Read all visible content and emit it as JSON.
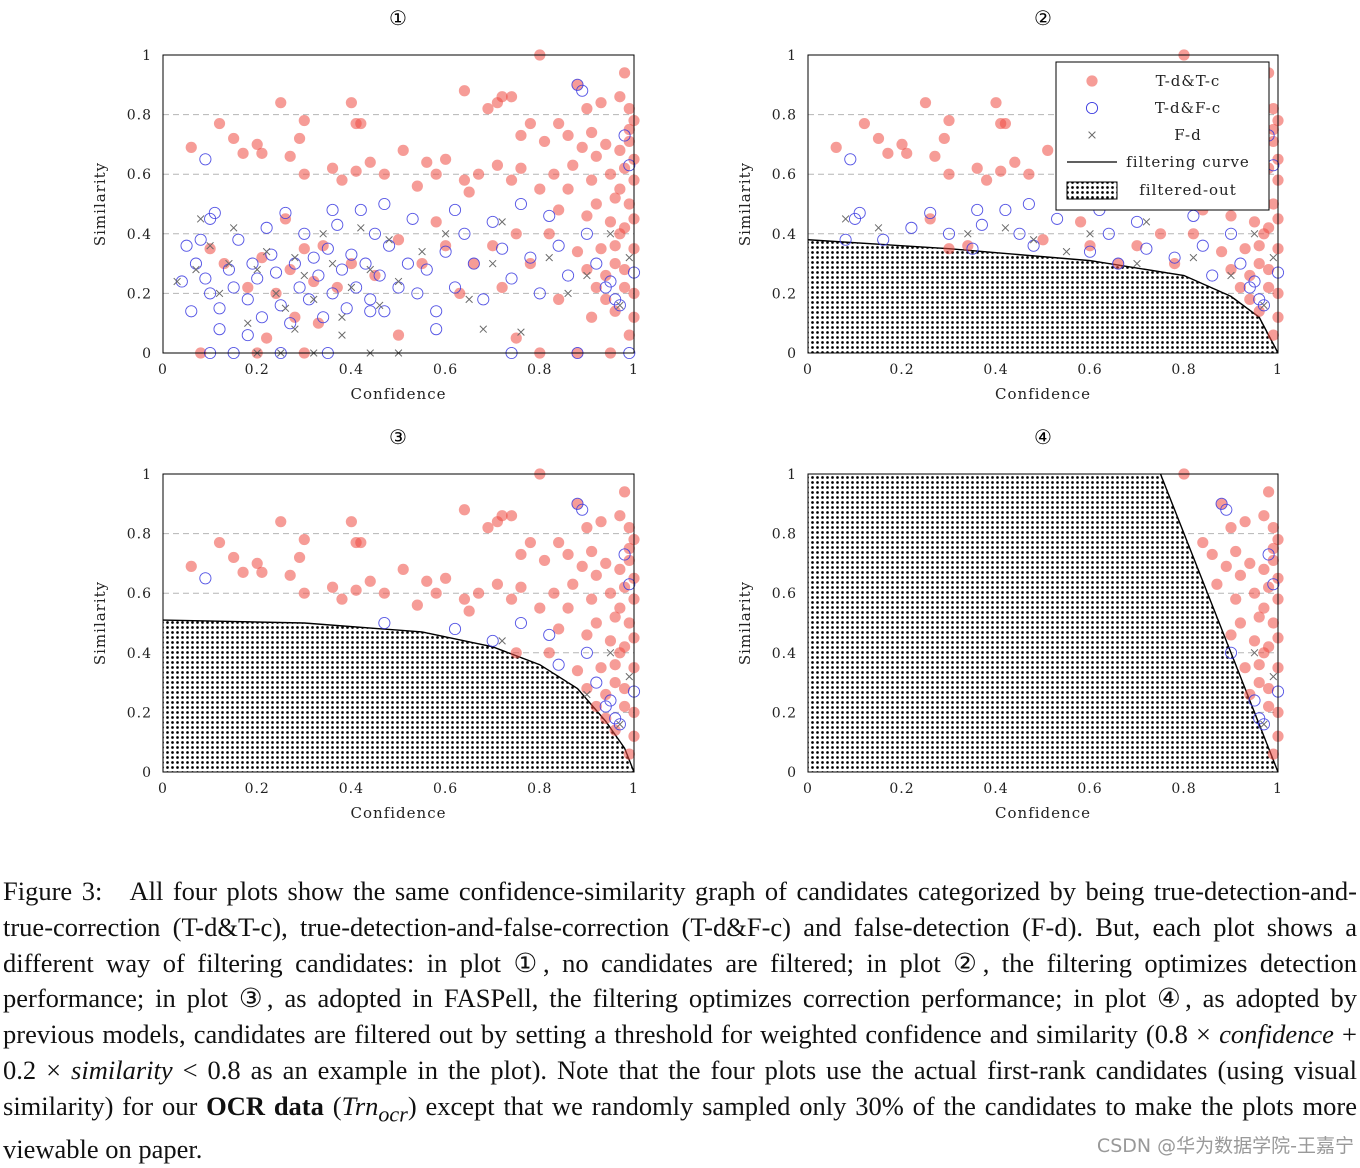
{
  "figure": {
    "panels": [
      {
        "number": "①",
        "filter": "none"
      },
      {
        "number": "②",
        "filter": "detection"
      },
      {
        "number": "③",
        "filter": "correction"
      },
      {
        "number": "④",
        "filter": "threshold"
      }
    ],
    "axes": {
      "xlabel": "Confidence",
      "ylabel": "Similarity",
      "xticks": [
        "0",
        "0.2",
        "0.4",
        "0.6",
        "0.8",
        "1"
      ],
      "yticks": [
        "0",
        "0.2",
        "0.4",
        "0.6",
        "0.8",
        "1"
      ]
    },
    "legend": {
      "tdtc": "T-d&T-c",
      "tdfc": "T-d&F-c",
      "fd": "F-d",
      "curve": "filtering curve",
      "filtered": "filtered-out"
    },
    "colors": {
      "tdtc": "#ef4a42",
      "tdfc": "#3a3ae0",
      "fd": "#6b6b6b",
      "curve": "#000000"
    }
  },
  "chart_data": {
    "type": "scatter",
    "xlabel": "Confidence",
    "ylabel": "Similarity",
    "xlim": [
      0,
      1
    ],
    "ylim": [
      0,
      1
    ],
    "series": [
      {
        "name": "T-d&T-c",
        "marker": "filled-circle",
        "points": [
          [
            0.06,
            0.69
          ],
          [
            0.12,
            0.77
          ],
          [
            0.15,
            0.72
          ],
          [
            0.17,
            0.67
          ],
          [
            0.2,
            0.7
          ],
          [
            0.21,
            0.67
          ],
          [
            0.25,
            0.84
          ],
          [
            0.27,
            0.66
          ],
          [
            0.29,
            0.72
          ],
          [
            0.3,
            0.78
          ],
          [
            0.3,
            0.6
          ],
          [
            0.4,
            0.84
          ],
          [
            0.41,
            0.77
          ],
          [
            0.42,
            0.77
          ],
          [
            0.36,
            0.62
          ],
          [
            0.38,
            0.58
          ],
          [
            0.41,
            0.61
          ],
          [
            0.44,
            0.64
          ],
          [
            0.47,
            0.6
          ],
          [
            0.51,
            0.68
          ],
          [
            0.54,
            0.56
          ],
          [
            0.56,
            0.64
          ],
          [
            0.58,
            0.6
          ],
          [
            0.6,
            0.65
          ],
          [
            0.64,
            0.58
          ],
          [
            0.65,
            0.54
          ],
          [
            0.67,
            0.6
          ],
          [
            0.71,
            0.63
          ],
          [
            0.74,
            0.58
          ],
          [
            0.76,
            0.62
          ],
          [
            0.8,
            0.55
          ],
          [
            0.64,
            0.88
          ],
          [
            0.69,
            0.82
          ],
          [
            0.71,
            0.84
          ],
          [
            0.72,
            0.86
          ],
          [
            0.74,
            0.86
          ],
          [
            0.76,
            0.73
          ],
          [
            0.78,
            0.77
          ],
          [
            0.8,
            1.0
          ],
          [
            0.81,
            0.71
          ],
          [
            0.83,
            0.6
          ],
          [
            0.84,
            0.77
          ],
          [
            0.86,
            0.73
          ],
          [
            0.88,
            0.9
          ],
          [
            0.9,
            0.82
          ],
          [
            0.91,
            0.74
          ],
          [
            0.92,
            0.66
          ],
          [
            0.93,
            0.84
          ],
          [
            0.94,
            0.7
          ],
          [
            0.95,
            0.6
          ],
          [
            0.96,
            0.52
          ],
          [
            0.97,
            0.4
          ],
          [
            0.97,
            0.86
          ],
          [
            0.98,
            0.94
          ],
          [
            0.99,
            0.82
          ],
          [
            0.99,
            0.75
          ],
          [
            1.0,
            0.65
          ],
          [
            1.0,
            0.58
          ],
          [
            0.97,
            0.55
          ],
          [
            0.96,
            0.3
          ],
          [
            0.98,
            0.22
          ],
          [
            1.0,
            0.2
          ],
          [
            1.0,
            0.12
          ],
          [
            0.99,
            0.06
          ],
          [
            0.98,
            0.62
          ],
          [
            0.99,
            0.5
          ],
          [
            1.0,
            0.45
          ],
          [
            0.95,
            0.44
          ],
          [
            0.93,
            0.35
          ],
          [
            0.9,
            0.46
          ],
          [
            0.92,
            0.5
          ],
          [
            0.86,
            0.55
          ],
          [
            0.84,
            0.48
          ],
          [
            0.82,
            0.4
          ],
          [
            0.88,
            0.34
          ],
          [
            0.9,
            0.28
          ],
          [
            0.92,
            0.22
          ],
          [
            0.94,
            0.18
          ],
          [
            0.96,
            0.14
          ],
          [
            0.98,
            0.28
          ],
          [
            1.0,
            0.35
          ],
          [
            0.87,
            0.63
          ],
          [
            0.89,
            0.69
          ],
          [
            0.91,
            0.58
          ],
          [
            0.97,
            0.68
          ],
          [
            0.99,
            0.71
          ],
          [
            1.0,
            0.78
          ],
          [
            0.98,
            0.42
          ],
          [
            0.96,
            0.36
          ],
          [
            0.94,
            0.26
          ],
          [
            0.1,
            0.35
          ],
          [
            0.13,
            0.3
          ],
          [
            0.18,
            0.22
          ],
          [
            0.21,
            0.32
          ],
          [
            0.24,
            0.2
          ],
          [
            0.27,
            0.28
          ],
          [
            0.3,
            0.35
          ],
          [
            0.32,
            0.24
          ],
          [
            0.34,
            0.36
          ],
          [
            0.37,
            0.22
          ],
          [
            0.4,
            0.3
          ],
          [
            0.45,
            0.26
          ],
          [
            0.5,
            0.38
          ],
          [
            0.55,
            0.3
          ],
          [
            0.58,
            0.44
          ],
          [
            0.6,
            0.36
          ],
          [
            0.63,
            0.2
          ],
          [
            0.66,
            0.3
          ],
          [
            0.7,
            0.36
          ],
          [
            0.72,
            0.22
          ],
          [
            0.75,
            0.4
          ],
          [
            0.78,
            0.3
          ],
          [
            0.28,
            0.12
          ],
          [
            0.33,
            0.1
          ],
          [
            0.26,
            0.45
          ],
          [
            0.22,
            0.05
          ],
          [
            0.3,
            0.0
          ],
          [
            0.08,
            0.0
          ],
          [
            0.2,
            0.0
          ],
          [
            0.5,
            0.06
          ],
          [
            0.75,
            0.05
          ],
          [
            0.8,
            0.0
          ],
          [
            0.88,
            0.0
          ],
          [
            0.95,
            0.0
          ],
          [
            0.91,
            0.12
          ],
          [
            0.84,
            0.18
          ]
        ]
      },
      {
        "name": "T-d&F-c",
        "marker": "open-circle",
        "points": [
          [
            0.09,
            0.65
          ],
          [
            0.1,
            0.45
          ],
          [
            0.11,
            0.47
          ],
          [
            0.08,
            0.38
          ],
          [
            0.05,
            0.36
          ],
          [
            0.07,
            0.3
          ],
          [
            0.09,
            0.25
          ],
          [
            0.1,
            0.2
          ],
          [
            0.12,
            0.15
          ],
          [
            0.14,
            0.28
          ],
          [
            0.15,
            0.22
          ],
          [
            0.16,
            0.38
          ],
          [
            0.18,
            0.18
          ],
          [
            0.19,
            0.3
          ],
          [
            0.2,
            0.25
          ],
          [
            0.21,
            0.12
          ],
          [
            0.22,
            0.42
          ],
          [
            0.23,
            0.33
          ],
          [
            0.24,
            0.27
          ],
          [
            0.25,
            0.16
          ],
          [
            0.26,
            0.47
          ],
          [
            0.27,
            0.1
          ],
          [
            0.28,
            0.3
          ],
          [
            0.29,
            0.22
          ],
          [
            0.3,
            0.4
          ],
          [
            0.31,
            0.18
          ],
          [
            0.32,
            0.32
          ],
          [
            0.33,
            0.26
          ],
          [
            0.34,
            0.12
          ],
          [
            0.35,
            0.35
          ],
          [
            0.36,
            0.2
          ],
          [
            0.37,
            0.43
          ],
          [
            0.38,
            0.28
          ],
          [
            0.39,
            0.15
          ],
          [
            0.4,
            0.33
          ],
          [
            0.41,
            0.22
          ],
          [
            0.42,
            0.48
          ],
          [
            0.43,
            0.3
          ],
          [
            0.44,
            0.18
          ],
          [
            0.45,
            0.4
          ],
          [
            0.46,
            0.26
          ],
          [
            0.47,
            0.14
          ],
          [
            0.48,
            0.36
          ],
          [
            0.5,
            0.22
          ],
          [
            0.52,
            0.3
          ],
          [
            0.53,
            0.45
          ],
          [
            0.54,
            0.2
          ],
          [
            0.56,
            0.28
          ],
          [
            0.58,
            0.14
          ],
          [
            0.6,
            0.34
          ],
          [
            0.62,
            0.22
          ],
          [
            0.64,
            0.4
          ],
          [
            0.66,
            0.3
          ],
          [
            0.68,
            0.18
          ],
          [
            0.7,
            0.44
          ],
          [
            0.72,
            0.35
          ],
          [
            0.74,
            0.25
          ],
          [
            0.76,
            0.5
          ],
          [
            0.78,
            0.32
          ],
          [
            0.8,
            0.2
          ],
          [
            0.82,
            0.46
          ],
          [
            0.84,
            0.36
          ],
          [
            0.86,
            0.26
          ],
          [
            0.88,
            0.9
          ],
          [
            0.89,
            0.88
          ],
          [
            0.9,
            0.4
          ],
          [
            0.92,
            0.3
          ],
          [
            0.94,
            0.22
          ],
          [
            0.96,
            0.18
          ],
          [
            0.98,
            0.73
          ],
          [
            0.99,
            0.63
          ],
          [
            1.0,
            0.27
          ],
          [
            0.97,
            0.16
          ],
          [
            0.95,
            0.24
          ],
          [
            0.35,
            0.0
          ],
          [
            0.25,
            0.0
          ],
          [
            0.15,
            0.0
          ],
          [
            0.1,
            0.0
          ],
          [
            0.74,
            0.0
          ],
          [
            0.88,
            0.0
          ],
          [
            0.99,
            0.0
          ],
          [
            0.58,
            0.08
          ],
          [
            0.44,
            0.14
          ],
          [
            0.04,
            0.24
          ],
          [
            0.06,
            0.14
          ],
          [
            0.12,
            0.08
          ],
          [
            0.18,
            0.06
          ],
          [
            0.36,
            0.48
          ],
          [
            0.47,
            0.5
          ],
          [
            0.62,
            0.48
          ]
        ]
      },
      {
        "name": "F-d",
        "marker": "x",
        "points": [
          [
            0.03,
            0.24
          ],
          [
            0.07,
            0.28
          ],
          [
            0.08,
            0.45
          ],
          [
            0.1,
            0.36
          ],
          [
            0.12,
            0.2
          ],
          [
            0.14,
            0.3
          ],
          [
            0.15,
            0.42
          ],
          [
            0.18,
            0.1
          ],
          [
            0.2,
            0.28
          ],
          [
            0.22,
            0.34
          ],
          [
            0.24,
            0.2
          ],
          [
            0.26,
            0.15
          ],
          [
            0.28,
            0.32
          ],
          [
            0.3,
            0.26
          ],
          [
            0.32,
            0.18
          ],
          [
            0.34,
            0.4
          ],
          [
            0.36,
            0.3
          ],
          [
            0.38,
            0.12
          ],
          [
            0.4,
            0.22
          ],
          [
            0.42,
            0.42
          ],
          [
            0.44,
            0.28
          ],
          [
            0.46,
            0.16
          ],
          [
            0.48,
            0.38
          ],
          [
            0.5,
            0.24
          ],
          [
            0.55,
            0.34
          ],
          [
            0.6,
            0.4
          ],
          [
            0.65,
            0.18
          ],
          [
            0.68,
            0.08
          ],
          [
            0.7,
            0.3
          ],
          [
            0.72,
            0.44
          ],
          [
            0.76,
            0.07
          ],
          [
            0.82,
            0.32
          ],
          [
            0.86,
            0.2
          ],
          [
            0.9,
            0.26
          ],
          [
            0.95,
            0.4
          ],
          [
            0.97,
            0.16
          ],
          [
            0.99,
            0.32
          ],
          [
            0.2,
            0.0
          ],
          [
            0.25,
            0.0
          ],
          [
            0.32,
            0.0
          ],
          [
            0.44,
            0.0
          ],
          [
            0.5,
            0.0
          ],
          [
            0.38,
            0.06
          ],
          [
            0.28,
            0.08
          ]
        ]
      }
    ],
    "filtering_curves": {
      "panel_2": [
        [
          0,
          0.38
        ],
        [
          0.3,
          0.35
        ],
        [
          0.6,
          0.31
        ],
        [
          0.8,
          0.26
        ],
        [
          0.9,
          0.19
        ],
        [
          0.96,
          0.12
        ],
        [
          1.0,
          0.0
        ]
      ],
      "panel_3": [
        [
          0,
          0.51
        ],
        [
          0.3,
          0.5
        ],
        [
          0.55,
          0.47
        ],
        [
          0.7,
          0.42
        ],
        [
          0.8,
          0.36
        ],
        [
          0.88,
          0.28
        ],
        [
          0.94,
          0.17
        ],
        [
          0.98,
          0.08
        ],
        [
          1.0,
          0.0
        ]
      ],
      "panel_4": [
        [
          0.75,
          1.0
        ],
        [
          1.0,
          0.0
        ]
      ]
    }
  },
  "caption": {
    "label": "Figure 3:",
    "s1": "All four plots show the same confidence-similarity graph of candidates categorized by being true-detection-and-true-correction (T-d&T-c), true-detection-and-false-correction (T-d&F-c) and false-detection (F-d). But, each plot shows a different way of filtering candidates: in plot ①, no candidates are filtered; in plot ②, the filtering optimizes detection performance; in plot ③, as adopted in FASPell, the filtering optimizes correction performance; in plot ④, as adopted by previous models, candidates are filtered out by setting a threshold for weighted confidence and similarity (0.8 × ",
    "m1": "confidence",
    "s2": " + 0.2 × ",
    "m2": "similarity",
    "s3": " < 0.8 as an example in the plot). Note that the four plots use the actual first-rank candidates (using visual similarity) for our ",
    "bold": "OCR data",
    "s4": " (",
    "m3": "Trn",
    "sub": "ocr",
    "s5": ") except that we randomly sampled only 30% of the candidates to make the plots more viewable on paper."
  },
  "watermark": "CSDN @华为数据学院-王嘉宁"
}
